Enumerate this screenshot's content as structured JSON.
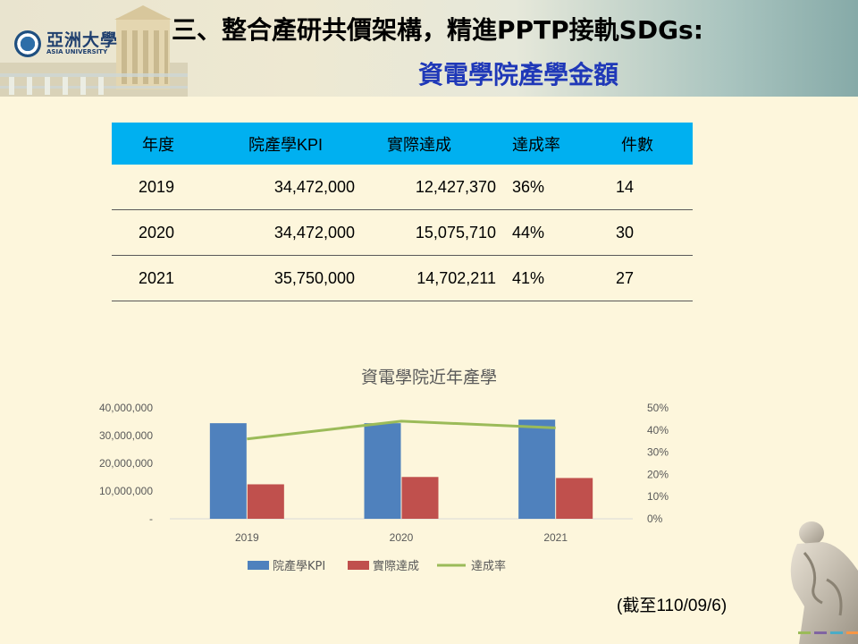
{
  "header": {
    "logo_zh": "亞洲大學",
    "logo_en": "ASIA UNIVERSITY",
    "title_line1": "三、整合產研共價架構，精進PPTP接軌SDGs:",
    "title_line2": "資電學院產學金額"
  },
  "table": {
    "headers": [
      "年度",
      "院產學KPI",
      "實際達成",
      "達成率",
      "件數"
    ],
    "rows": [
      [
        "2019",
        "34,472,000",
        "12,427,370",
        "36%",
        "14"
      ],
      [
        "2020",
        "34,472,000",
        "15,075,710",
        "44%",
        "30"
      ],
      [
        "2021",
        "35,750,000",
        "14,702,211",
        "41%",
        "27"
      ]
    ]
  },
  "chart_data": {
    "type": "bar",
    "title": "資電學院近年產學",
    "categories": [
      "2019",
      "2020",
      "2021"
    ],
    "series": [
      {
        "name": "院產學KPI",
        "type": "bar",
        "axis": "left",
        "color": "#4f81bd",
        "values": [
          34472000,
          34472000,
          35750000
        ]
      },
      {
        "name": "實際達成",
        "type": "bar",
        "axis": "left",
        "color": "#c0504d",
        "values": [
          12427370,
          15075710,
          14702211
        ]
      },
      {
        "name": "達成率",
        "type": "line",
        "axis": "right",
        "color": "#9bbb59",
        "values": [
          36,
          44,
          41
        ]
      }
    ],
    "y_left": {
      "range": [
        0,
        40000000
      ],
      "ticks": [
        "-",
        "10,000,000",
        "20,000,000",
        "30,000,000",
        "40,000,000"
      ]
    },
    "y_right": {
      "range": [
        0,
        50
      ],
      "ticks": [
        "0%",
        "10%",
        "20%",
        "30%",
        "40%",
        "50%"
      ]
    },
    "grid": false,
    "legend": "bottom"
  },
  "footnote": "(截至110/09/6)"
}
